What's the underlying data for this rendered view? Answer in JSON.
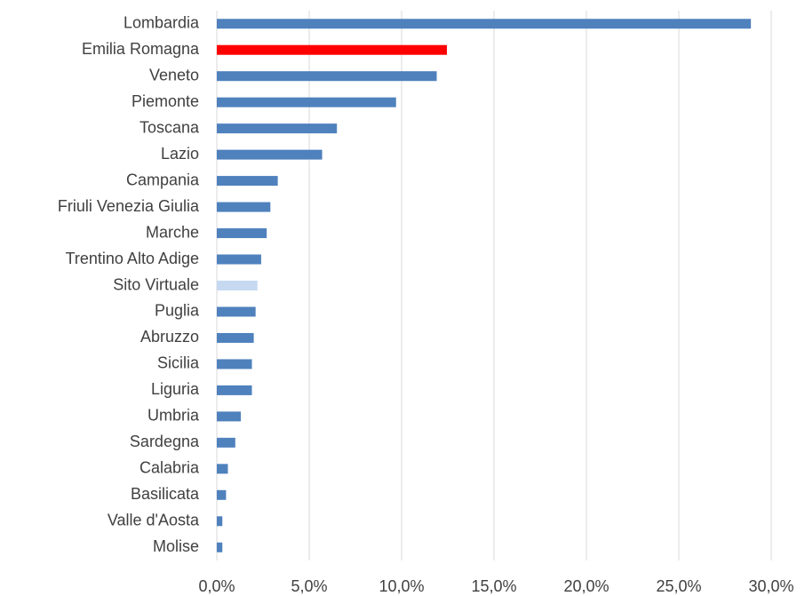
{
  "chart_data": {
    "type": "hbar",
    "categories": [
      "Lombardia",
      "Emilia Romagna",
      "Veneto",
      "Piemonte",
      "Toscana",
      "Lazio",
      "Campania",
      "Friuli Venezia Giulia",
      "Marche",
      "Trentino Alto Adige",
      "Sito Virtuale",
      "Puglia",
      "Abruzzo",
      "Sicilia",
      "Liguria",
      "Umbria",
      "Sardegna",
      "Calabria",
      "Basilicata",
      "Valle d'Aosta",
      "Molise"
    ],
    "values": [
      28.9,
      12.45,
      11.9,
      9.7,
      6.5,
      5.7,
      3.3,
      2.9,
      2.7,
      2.4,
      2.2,
      2.1,
      2.0,
      1.9,
      1.9,
      1.3,
      1.0,
      0.6,
      0.5,
      0.3,
      0.3
    ],
    "colors": [
      "#4f81bd",
      "#ff0000",
      "#4f81bd",
      "#4f81bd",
      "#4f81bd",
      "#4f81bd",
      "#4f81bd",
      "#4f81bd",
      "#4f81bd",
      "#4f81bd",
      "#c6d9f1",
      "#4f81bd",
      "#4f81bd",
      "#4f81bd",
      "#4f81bd",
      "#4f81bd",
      "#4f81bd",
      "#4f81bd",
      "#4f81bd",
      "#4f81bd",
      "#4f81bd"
    ],
    "xlim": [
      0,
      30
    ],
    "xticks": [
      {
        "value": 0,
        "label": "0,0%"
      },
      {
        "value": 5,
        "label": "5,0%"
      },
      {
        "value": 10,
        "label": "10,0%"
      },
      {
        "value": 15,
        "label": "15,0%"
      },
      {
        "value": 20,
        "label": "20,0%"
      },
      {
        "value": 25,
        "label": "25,0%"
      },
      {
        "value": 30,
        "label": "30,0%"
      }
    ],
    "grid": true
  }
}
